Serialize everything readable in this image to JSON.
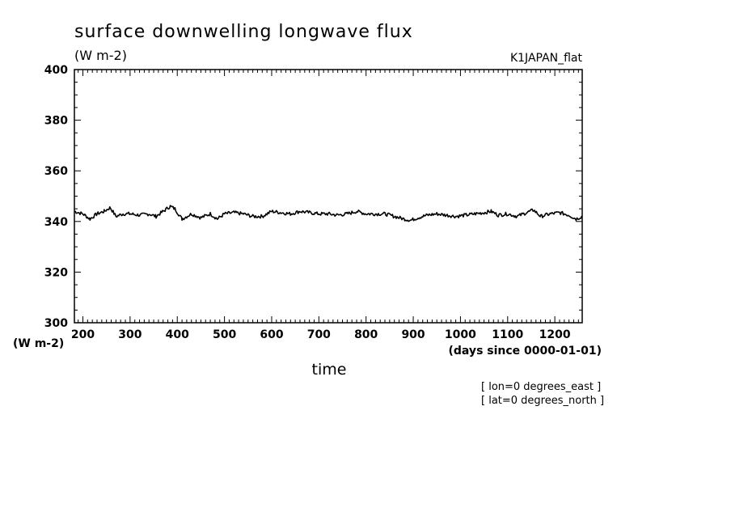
{
  "chart_data": {
    "type": "line",
    "title": "surface downwelling longwave flux",
    "units": "(W m-2)",
    "dataset": "K1JAPAN_flat",
    "xlabel": "time",
    "xunits": "(days since 0000-01-01)",
    "ylabel": "(W m-2)",
    "xlim": [
      182,
      1258
    ],
    "ylim": [
      300,
      400
    ],
    "xticks": [
      200,
      300,
      400,
      500,
      600,
      700,
      800,
      900,
      1000,
      1100,
      1200
    ],
    "yticks": [
      300,
      320,
      340,
      360,
      380,
      400
    ],
    "grid": false,
    "annotations": [
      "[ lon=0 degrees_east ]",
      "[ lat=0 degrees_north ]"
    ],
    "series": [
      {
        "x": [
          182,
          200,
          215,
          230,
          245,
          258,
          270,
          285,
          300,
          320,
          340,
          355,
          370,
          385,
          395,
          410,
          430,
          450,
          470,
          485,
          500,
          520,
          540,
          560,
          580,
          600,
          620,
          640,
          660,
          680,
          700,
          720,
          740,
          760,
          780,
          800,
          820,
          840,
          860,
          880,
          895,
          910,
          930,
          950,
          970,
          990,
          1010,
          1030,
          1050,
          1065,
          1080,
          1100,
          1120,
          1140,
          1155,
          1170,
          1190,
          1210,
          1230,
          1245,
          1258
        ],
        "values": [
          344,
          343,
          341,
          343,
          344,
          345.5,
          342,
          343,
          343,
          342.5,
          343,
          342,
          344,
          346,
          345,
          341,
          343,
          341.5,
          343,
          341,
          343,
          343.5,
          343,
          342,
          342,
          344,
          343.5,
          343,
          344,
          343.5,
          343,
          343,
          342.5,
          343,
          344,
          343,
          343,
          343,
          342,
          341,
          340.5,
          341.5,
          342.5,
          343,
          342.5,
          342,
          342.5,
          343,
          343.5,
          344,
          342.5,
          343,
          342,
          343.5,
          344.5,
          342,
          343,
          343.5,
          342.5,
          341,
          342
        ]
      }
    ]
  }
}
